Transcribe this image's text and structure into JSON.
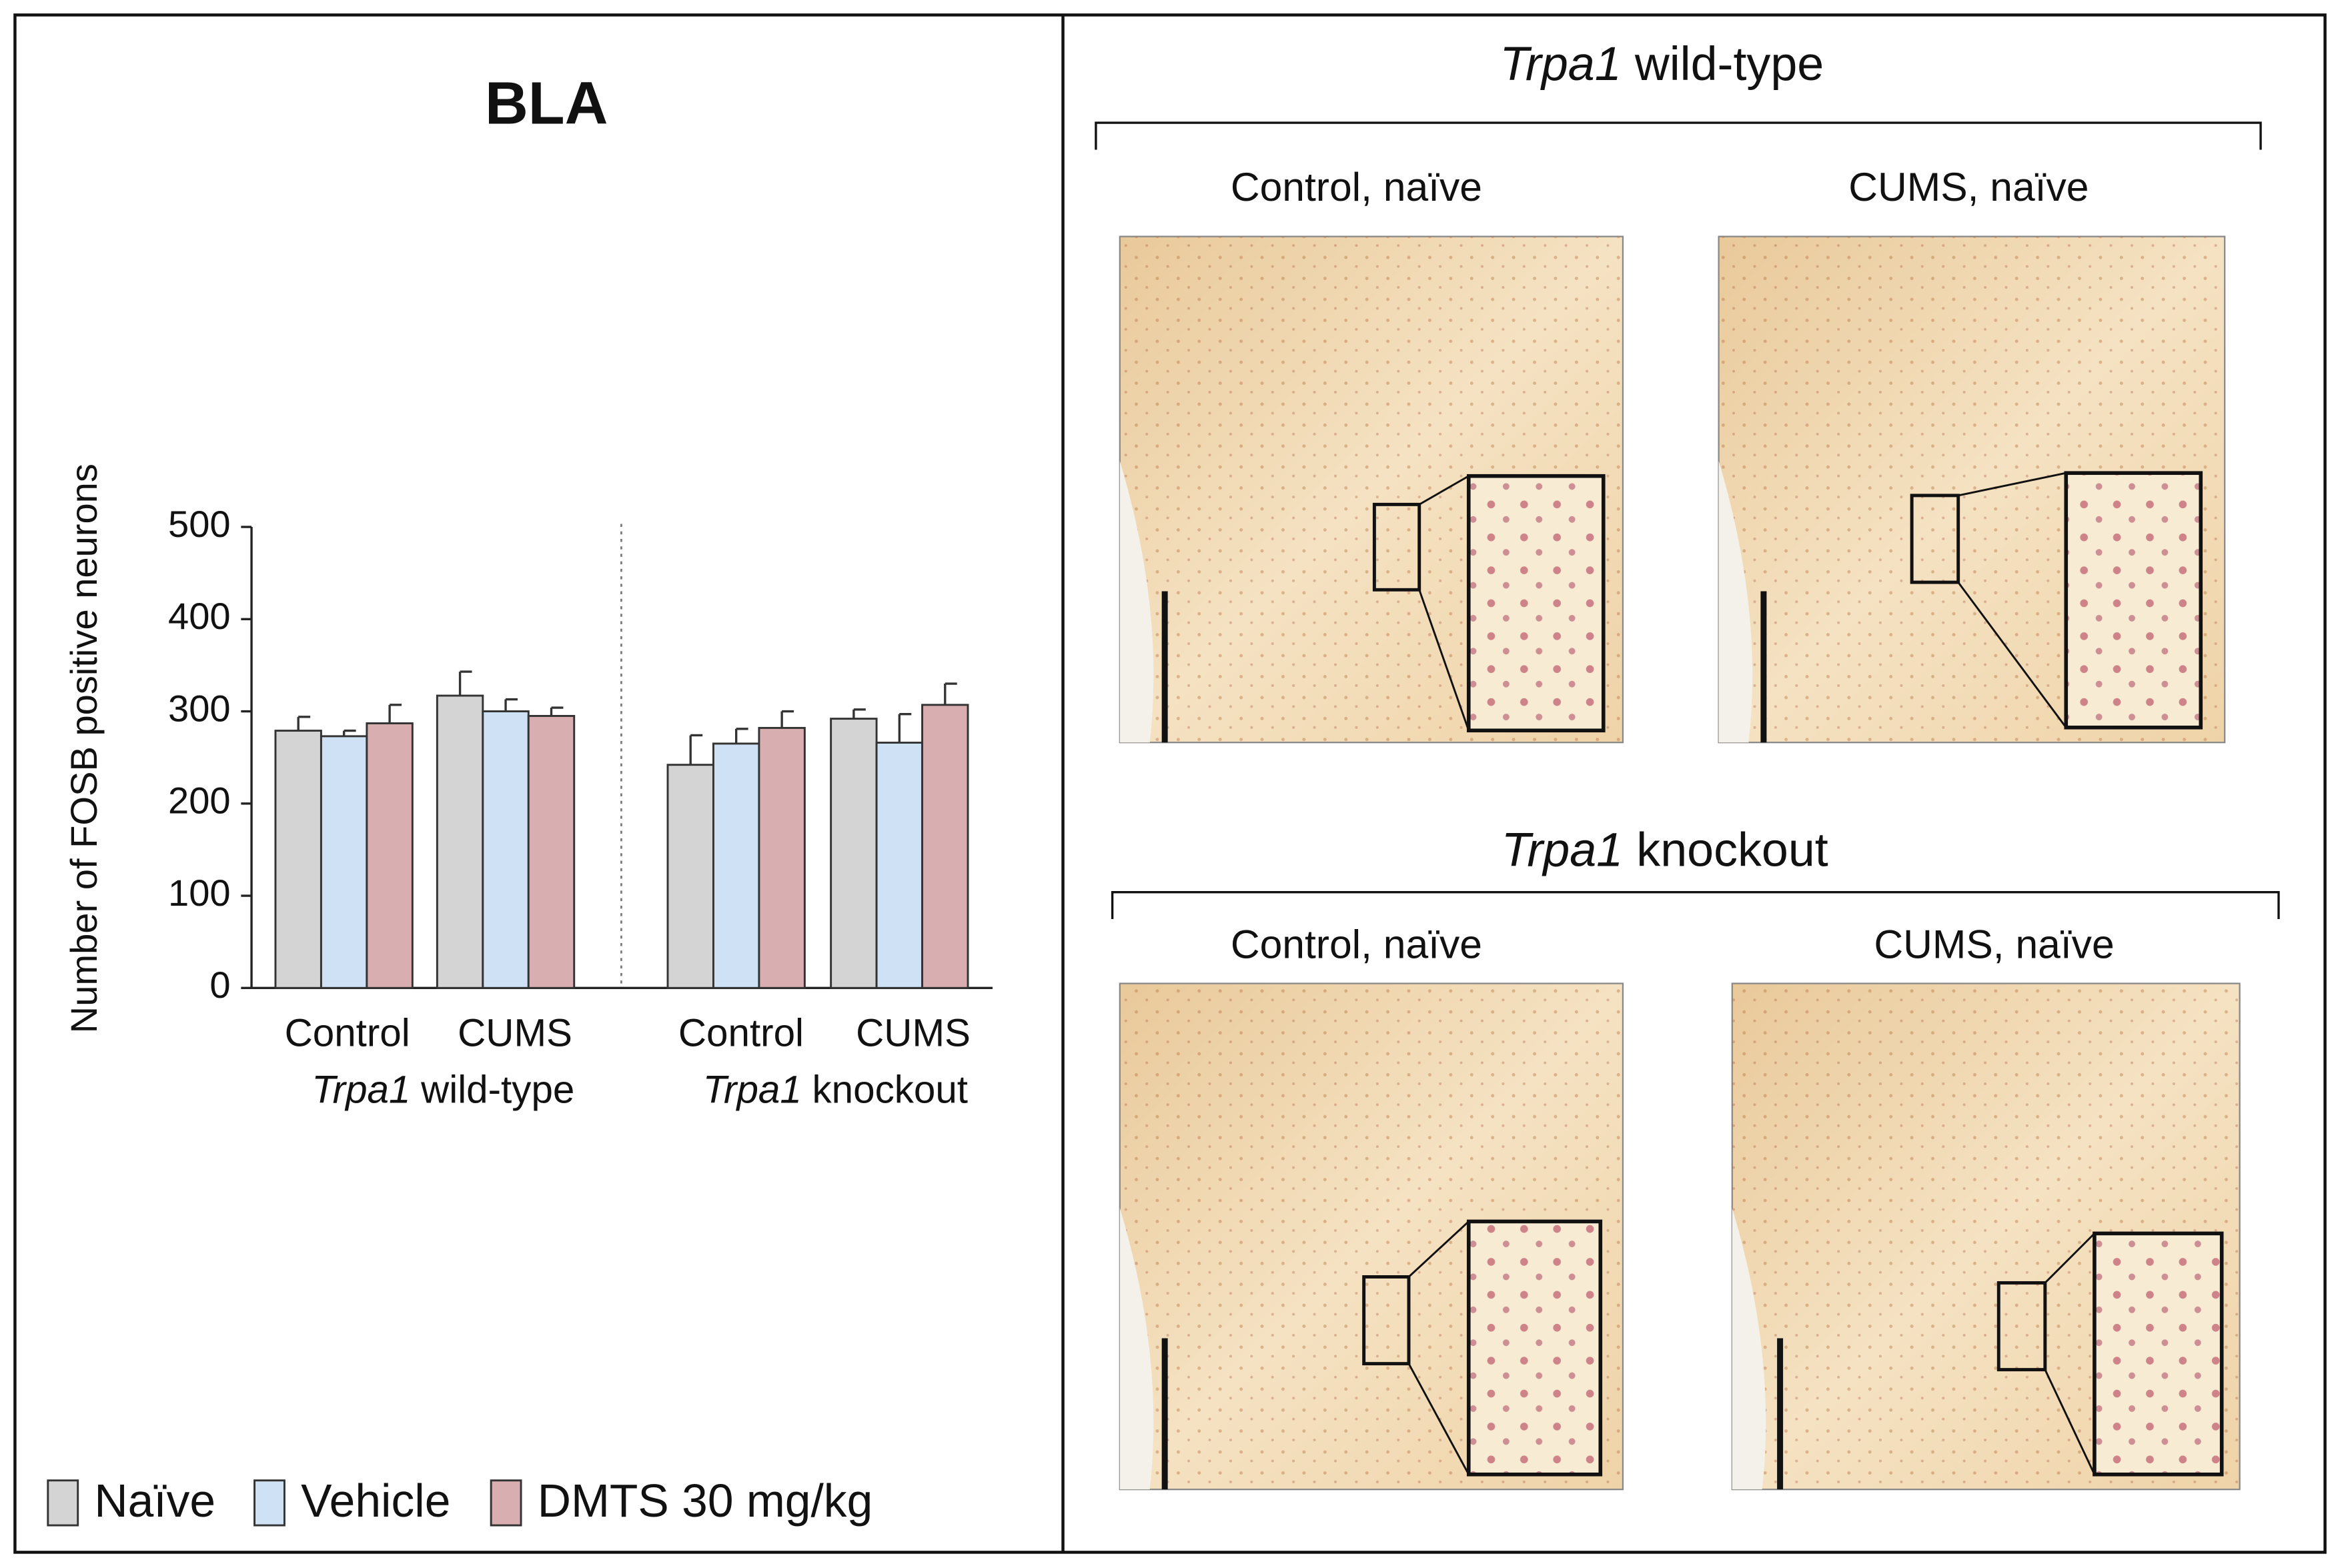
{
  "chart_data": {
    "type": "bar",
    "title": "BLA",
    "ylabel": "Number of FOSB positive neurons",
    "categories": [
      "Control",
      "CUMS",
      "Control",
      "CUMS"
    ],
    "group_labels": [
      {
        "gene": "Trpa1",
        "label": "wild-type"
      },
      {
        "gene": "Trpa1",
        "label": "knockout"
      }
    ],
    "series": [
      {
        "name": "Naïve",
        "color": "#d4d4d4",
        "values": [
          279,
          317,
          242,
          292
        ],
        "errors": [
          15,
          26,
          32,
          10
        ]
      },
      {
        "name": "Vehicle",
        "color": "#cfe2f5",
        "values": [
          273,
          300,
          265,
          266
        ],
        "errors": [
          6,
          13,
          16,
          31
        ]
      },
      {
        "name": "DMTS 30 mg/kg",
        "color": "#d9aeb1",
        "values": [
          287,
          295,
          282,
          307
        ],
        "errors": [
          20,
          9,
          18,
          23
        ]
      }
    ],
    "ylim": [
      0,
      500
    ],
    "yticks": [
      0,
      100,
      200,
      300,
      400,
      500
    ],
    "legend": "bottom-left"
  },
  "panels": [
    {
      "gene": "Trpa1",
      "label": "wild-type",
      "images": [
        "Control, naïve",
        "CUMS, naïve"
      ]
    },
    {
      "gene": "Trpa1",
      "label": "knockout",
      "images": [
        "Control, naïve",
        "CUMS, naïve"
      ]
    }
  ]
}
